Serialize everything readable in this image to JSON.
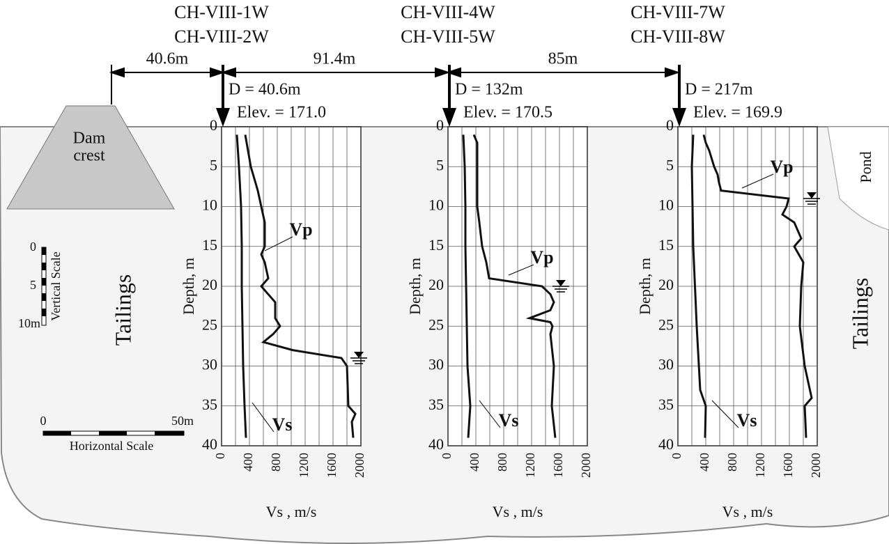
{
  "chart_data": [
    {
      "type": "line",
      "title": [
        "CH-VIII-1W",
        "CH-VIII-2W"
      ],
      "annotations": [
        "D = 40.6m",
        "Elev. = 171.0"
      ],
      "xlabel": "Vs , m/s",
      "ylabel": "Depth, m",
      "xlim": [
        0,
        2000
      ],
      "xticks": [
        0,
        400,
        800,
        1200,
        1600,
        2000
      ],
      "xgrid": [
        0,
        200,
        400,
        600,
        800,
        1000,
        1200,
        1400,
        1600,
        1800,
        2000
      ],
      "ylim": [
        0,
        40
      ],
      "yticks": [
        0,
        5,
        10,
        15,
        20,
        25,
        30,
        35,
        40
      ],
      "y_inverted": true,
      "grid": true,
      "water_table_depth": 29,
      "series": [
        {
          "name": "Vp",
          "color": "#111111",
          "depth": [
            1,
            5,
            8,
            10,
            12,
            15,
            16,
            17,
            19,
            20,
            21,
            22,
            24,
            25,
            26,
            27,
            28,
            29,
            30,
            35,
            36,
            37,
            39
          ],
          "values": [
            340,
            420,
            520,
            570,
            620,
            620,
            570,
            620,
            670,
            570,
            670,
            770,
            770,
            840,
            740,
            600,
            1020,
            1720,
            1800,
            1820,
            1920,
            1870,
            1890
          ]
        },
        {
          "name": "Vs",
          "color": "#111111",
          "depth": [
            1,
            5,
            10,
            15,
            20,
            25,
            30,
            35,
            39
          ],
          "values": [
            220,
            250,
            280,
            290,
            290,
            300,
            310,
            330,
            350
          ]
        }
      ]
    },
    {
      "type": "line",
      "title": [
        "CH-VIII-4W",
        "CH-VIII-5W"
      ],
      "annotations": [
        "D = 132m",
        "Elev. = 170.5"
      ],
      "xlabel": "Vs , m/s",
      "ylabel": "Depth, m",
      "xlim": [
        0,
        2000
      ],
      "xticks": [
        0,
        400,
        800,
        1200,
        1600,
        2000
      ],
      "xgrid": [
        0,
        200,
        400,
        600,
        800,
        1000,
        1200,
        1400,
        1600,
        1800,
        2000
      ],
      "ylim": [
        0,
        40
      ],
      "yticks": [
        0,
        5,
        10,
        15,
        20,
        25,
        30,
        35,
        40
      ],
      "y_inverted": true,
      "grid": true,
      "water_table_depth": 20,
      "series": [
        {
          "name": "Vp",
          "color": "#111111",
          "depth": [
            1,
            2,
            10,
            12,
            15,
            17,
            19,
            20,
            21,
            22,
            23,
            23.5,
            24,
            24.5,
            25,
            26,
            30,
            35,
            39
          ],
          "values": [
            370,
            420,
            420,
            450,
            490,
            550,
            590,
            1350,
            1470,
            1520,
            1470,
            1320,
            1170,
            1470,
            1500,
            1470,
            1520,
            1490,
            1540
          ]
        },
        {
          "name": "Vs",
          "color": "#111111",
          "depth": [
            1,
            5,
            10,
            15,
            20,
            25,
            30,
            35,
            39
          ],
          "values": [
            220,
            240,
            250,
            250,
            260,
            270,
            280,
            320,
            290
          ]
        }
      ]
    },
    {
      "type": "line",
      "title": [
        "CH-VIII-7W",
        "CH-VIII-8W"
      ],
      "annotations": [
        "D = 217m",
        "Elev. = 169.9"
      ],
      "xlabel": "Vs , m/s",
      "ylabel": "Depth, m",
      "xlim": [
        0,
        2000
      ],
      "xticks": [
        0,
        400,
        800,
        1200,
        1600,
        2000
      ],
      "xgrid": [
        0,
        200,
        400,
        600,
        800,
        1000,
        1200,
        1400,
        1600,
        1800,
        2000
      ],
      "ylim": [
        0,
        40
      ],
      "yticks": [
        0,
        5,
        10,
        15,
        20,
        25,
        30,
        35,
        40
      ],
      "y_inverted": true,
      "grid": true,
      "water_table_depth": 9,
      "series": [
        {
          "name": "Vp",
          "color": "#111111",
          "depth": [
            1,
            2,
            3,
            5,
            6,
            7,
            8,
            9,
            10,
            11,
            12,
            14,
            15,
            17,
            20,
            25,
            30,
            34,
            35,
            39
          ],
          "values": [
            370,
            400,
            450,
            520,
            570,
            590,
            620,
            1590,
            1560,
            1500,
            1670,
            1770,
            1670,
            1800,
            1770,
            1750,
            1820,
            1920,
            1820,
            1840
          ]
        },
        {
          "name": "Vs",
          "color": "#111111",
          "depth": [
            1,
            5,
            15,
            25,
            33,
            35,
            39
          ],
          "values": [
            220,
            200,
            220,
            270,
            320,
            400,
            390
          ]
        }
      ]
    }
  ],
  "diagram": {
    "distances": [
      "40.6m",
      "91.4m",
      "85m"
    ],
    "dam": [
      "Dam",
      "crest"
    ],
    "tailings": [
      "Tailings",
      "Tailings"
    ],
    "pond": "Pond",
    "vertical_scale": {
      "title": "Vertical Scale",
      "labels": [
        "0",
        "5",
        "10m"
      ]
    },
    "horizontal_scale": {
      "title": "Horizontal Scale",
      "labels": [
        "0",
        "50m"
      ]
    }
  }
}
